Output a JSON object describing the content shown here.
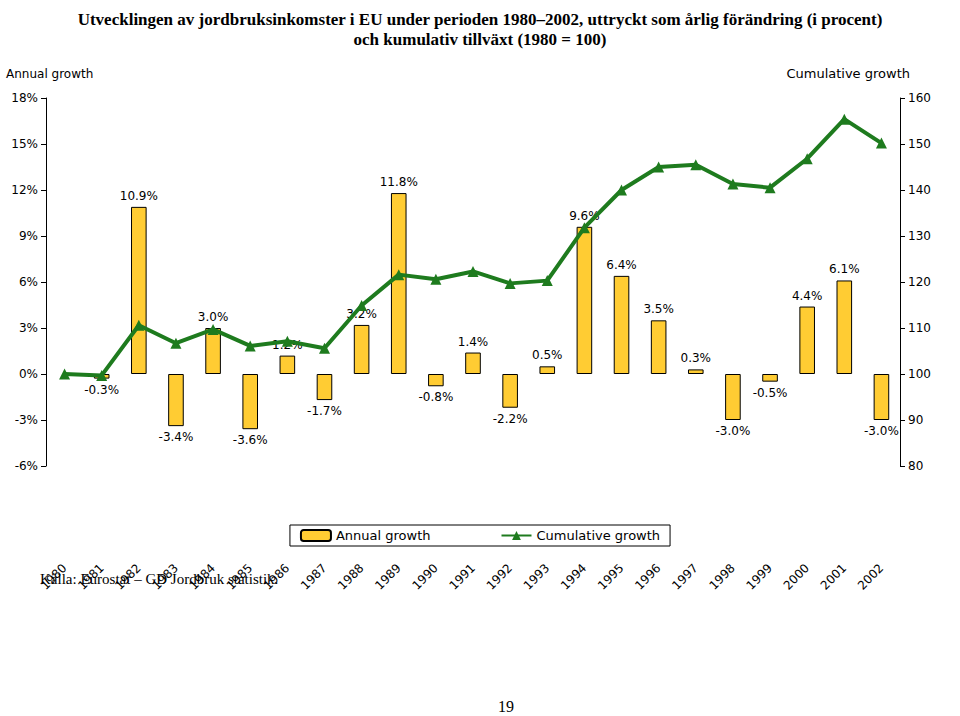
{
  "chart_data": {
    "type": "bar",
    "title": "Utvecklingen av jordbruksinkomster i EU under perioden 1980–2002, uttryckt som årlig förändring (i procent)\noch kumulativ tillväxt (1980 = 100)",
    "categories": [
      "1980",
      "1981",
      "1982",
      "1983",
      "1984",
      "1985",
      "1986",
      "1987",
      "1988",
      "1989",
      "1990",
      "1991",
      "1992",
      "1993",
      "1994",
      "1995",
      "1996",
      "1997",
      "1998",
      "1999",
      "2000",
      "2001",
      "2002"
    ],
    "y_label": "Annual growth",
    "y2_label": "Cumulative growth",
    "series": [
      {
        "name": "Annual growth",
        "type": "bar",
        "color": "#FFCC33",
        "values": [
          null,
          -0.3,
          10.9,
          -3.4,
          3.0,
          -3.6,
          1.2,
          -1.7,
          3.2,
          11.8,
          -0.8,
          1.4,
          -2.2,
          0.5,
          9.6,
          6.4,
          3.5,
          0.3,
          -3.0,
          -0.5,
          4.4,
          6.1,
          -3.0
        ],
        "value_labels": [
          null,
          "-0.3%",
          "10.9%",
          "-3.4%",
          "3.0%",
          "-3.6%",
          "1.2%",
          "-1.7%",
          "3.2%",
          "11.8%",
          "-0.8%",
          "1.4%",
          "-2.2%",
          "0.5%",
          "9.6%",
          "6.4%",
          "3.5%",
          "0.3%",
          "-3.0%",
          "-0.5%",
          "4.4%",
          "6.1%",
          "-3.0%"
        ],
        "data_labels": true
      },
      {
        "name": "Cumulative growth",
        "type": "line",
        "axis": "y2",
        "color": "#1E7B1E",
        "marker": "triangle",
        "line_style": "solid",
        "values": [
          100,
          99.7,
          110.6,
          106.7,
          109.7,
          106.1,
          107.1,
          105.6,
          114.9,
          121.6,
          120.6,
          122.3,
          119.7,
          120.3,
          131.8,
          140,
          145,
          145.5,
          141.3,
          140.5,
          146.8,
          155.4,
          150.2
        ]
      }
    ],
    "ylim": [
      -6,
      18
    ],
    "yticks": [
      {
        "value": -6,
        "label": "-6%"
      },
      {
        "value": -3,
        "label": "-3%"
      },
      {
        "value": 0,
        "label": "0%"
      },
      {
        "value": 3,
        "label": "3%"
      },
      {
        "value": 6,
        "label": "6%"
      },
      {
        "value": 9,
        "label": "9%"
      },
      {
        "value": 12,
        "label": "12%"
      },
      {
        "value": 15,
        "label": "15%"
      },
      {
        "value": 18,
        "label": "18%"
      }
    ],
    "y2lim": [
      80,
      160
    ],
    "y2ticks": [
      80,
      90,
      100,
      110,
      120,
      130,
      140,
      150,
      160
    ],
    "grid": false,
    "legend": "bottom",
    "annotations": [
      "Källa: Eurostat – GD Jordbruk statistik.",
      "19"
    ]
  }
}
